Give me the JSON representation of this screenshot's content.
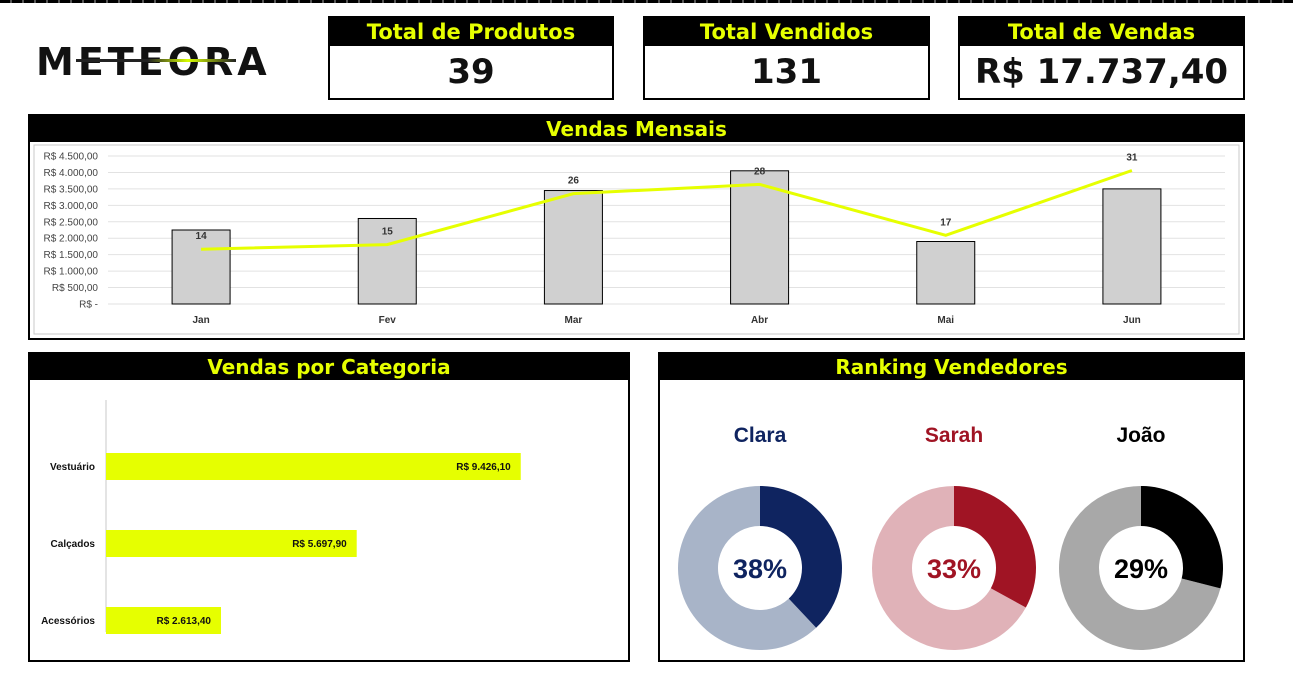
{
  "brand": {
    "logo_text": "METEORA"
  },
  "kpis": [
    {
      "label": "Total de Produtos",
      "value": "39"
    },
    {
      "label": "Total Vendidos",
      "value": "131"
    },
    {
      "label": "Total de Vendas",
      "value": "R$ 17.737,40"
    }
  ],
  "panels": {
    "monthly": "Vendas Mensais",
    "category": "Vendas por Categoria",
    "ranking": "Ranking Vendedores"
  },
  "colors": {
    "accent": "#e6ff00",
    "bar_gray": "#d0d0d0",
    "clara": "#0f2460",
    "sarah": "#a01424",
    "joao": "#000000"
  },
  "chart_data": [
    {
      "type": "bar",
      "title": "Vendas Mensais",
      "categories": [
        "Jan",
        "Fev",
        "Mar",
        "Abr",
        "Mai",
        "Jun"
      ],
      "series": [
        {
          "type": "bar",
          "values": [
            2250,
            2600,
            3450,
            4050,
            1900,
            3500
          ]
        },
        {
          "type": "line",
          "values": [
            14,
            15,
            26,
            28,
            17,
            31
          ],
          "labels": [
            "14",
            "15",
            "26",
            "28",
            "17",
            "31"
          ]
        }
      ],
      "ylim": [
        0,
        4500
      ],
      "y_ticks": [
        "R$ -",
        "R$ 500,00",
        "R$ 1.000,00",
        "R$ 1.500,00",
        "R$ 2.000,00",
        "R$ 2.500,00",
        "R$ 3.000,00",
        "R$ 3.500,00",
        "R$ 4.000,00",
        "R$ 4.500,00"
      ],
      "grid": true
    },
    {
      "type": "bar",
      "title": "Vendas por Categoria",
      "orientation": "horizontal",
      "categories": [
        "Vestuário",
        "Calçados",
        "Acessórios"
      ],
      "values": [
        9426.1,
        5697.9,
        2613.4
      ],
      "labels": [
        "R$ 9.426,10",
        "R$ 5.697,90",
        "R$ 2.613,40"
      ],
      "xlim": [
        0,
        11000
      ]
    },
    {
      "type": "pie",
      "title": "Ranking Vendedores",
      "donuts": [
        {
          "name": "Clara",
          "percent": 38,
          "label": "38%"
        },
        {
          "name": "Sarah",
          "percent": 33,
          "label": "33%"
        },
        {
          "name": "João",
          "percent": 29,
          "label": "29%"
        }
      ]
    }
  ]
}
